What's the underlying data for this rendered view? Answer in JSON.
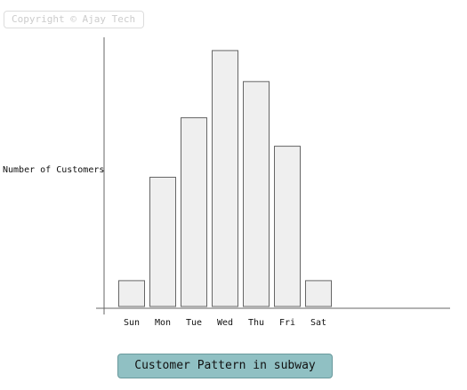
{
  "watermark": "Copyright © Ajay Tech",
  "chart_data": {
    "type": "bar",
    "title": "Customer Pattern in subway",
    "xlabel": "",
    "ylabel": "Number of Customers",
    "categories": [
      "Sun",
      "Mon",
      "Tue",
      "Wed",
      "Thu",
      "Fri",
      "Sat"
    ],
    "values": [
      10,
      50,
      73,
      99,
      87,
      62,
      10
    ],
    "ylim": [
      0,
      100
    ],
    "grid": false,
    "legend": "none",
    "colors": {
      "bar_fill": "#efefef",
      "bar_stroke": "#666666",
      "title_bg": "#90c0c3"
    }
  }
}
